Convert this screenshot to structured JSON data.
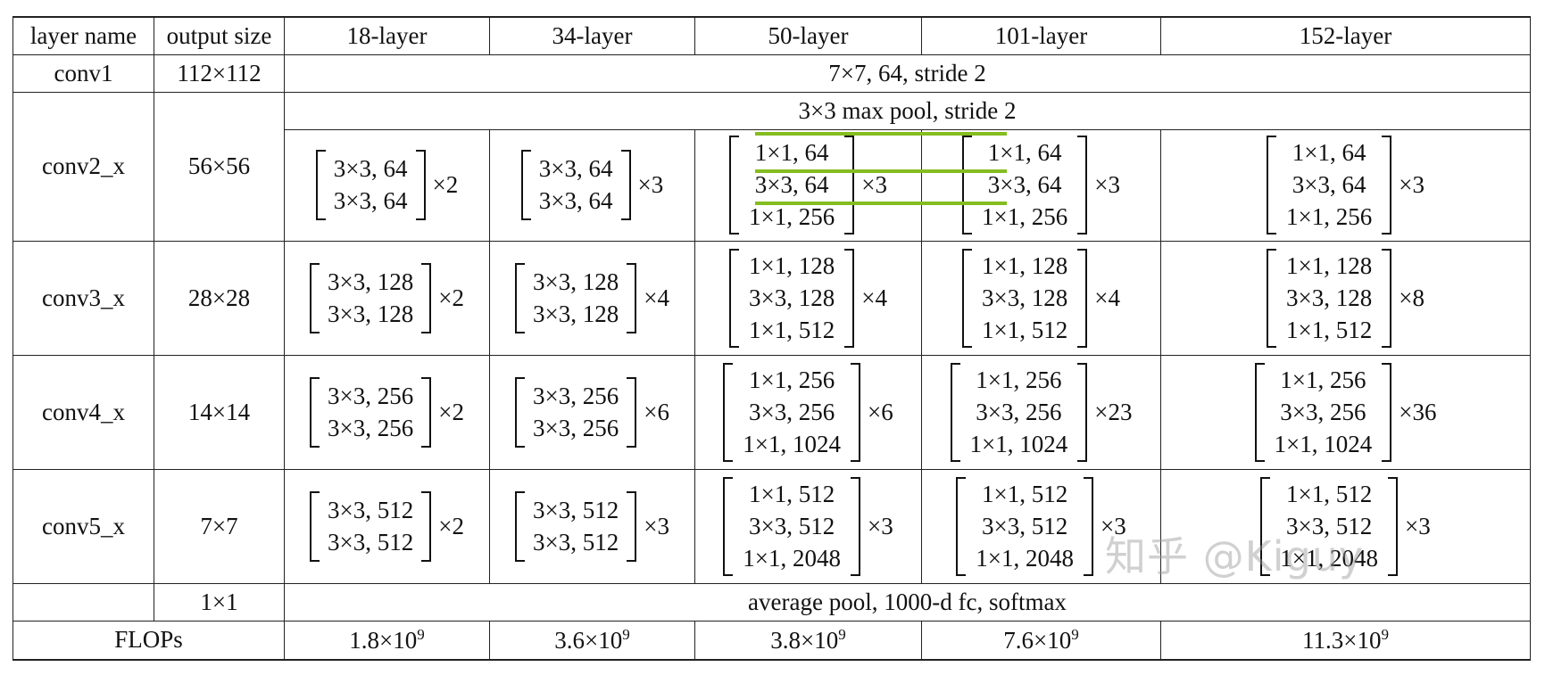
{
  "header": [
    "layer name",
    "output size",
    "18-layer",
    "34-layer",
    "50-layer",
    "101-layer",
    "152-layer"
  ],
  "conv1": {
    "name": "conv1",
    "size": "112×112",
    "desc": "7×7, 64, stride 2"
  },
  "conv2": {
    "name": "conv2_x",
    "size": "56×56",
    "pool": "3×3 max pool, stride 2",
    "l18": {
      "rows": [
        "3×3, 64",
        "3×3, 64"
      ],
      "rep": "×2"
    },
    "l34": {
      "rows": [
        "3×3, 64",
        "3×3, 64"
      ],
      "rep": "×3"
    },
    "l50": {
      "rows": [
        "1×1, 64",
        "3×3, 64",
        "1×1, 256"
      ],
      "rep": "×3"
    },
    "l101": {
      "rows": [
        "1×1, 64",
        "3×3, 64",
        "1×1, 256"
      ],
      "rep": "×3"
    },
    "l152": {
      "rows": [
        "1×1, 64",
        "3×3, 64",
        "1×1, 256"
      ],
      "rep": "×3"
    }
  },
  "conv3": {
    "name": "conv3_x",
    "size": "28×28",
    "l18": {
      "rows": [
        "3×3, 128",
        "3×3, 128"
      ],
      "rep": "×2"
    },
    "l34": {
      "rows": [
        "3×3, 128",
        "3×3, 128"
      ],
      "rep": "×4"
    },
    "l50": {
      "rows": [
        "1×1, 128",
        "3×3, 128",
        "1×1, 512"
      ],
      "rep": "×4"
    },
    "l101": {
      "rows": [
        "1×1, 128",
        "3×3, 128",
        "1×1, 512"
      ],
      "rep": "×4"
    },
    "l152": {
      "rows": [
        "1×1, 128",
        "3×3, 128",
        "1×1, 512"
      ],
      "rep": "×8"
    }
  },
  "conv4": {
    "name": "conv4_x",
    "size": "14×14",
    "l18": {
      "rows": [
        "3×3, 256",
        "3×3, 256"
      ],
      "rep": "×2"
    },
    "l34": {
      "rows": [
        "3×3, 256",
        "3×3, 256"
      ],
      "rep": "×6"
    },
    "l50": {
      "rows": [
        "1×1, 256",
        "3×3, 256",
        "1×1, 1024"
      ],
      "rep": "×6"
    },
    "l101": {
      "rows": [
        "1×1, 256",
        "3×3, 256",
        "1×1, 1024"
      ],
      "rep": "×23"
    },
    "l152": {
      "rows": [
        "1×1, 256",
        "3×3, 256",
        "1×1, 1024"
      ],
      "rep": "×36"
    }
  },
  "conv5": {
    "name": "conv5_x",
    "size": "7×7",
    "l18": {
      "rows": [
        "3×3, 512",
        "3×3, 512"
      ],
      "rep": "×2"
    },
    "l34": {
      "rows": [
        "3×3, 512",
        "3×3, 512"
      ],
      "rep": "×3"
    },
    "l50": {
      "rows": [
        "1×1, 512",
        "3×3, 512",
        "1×1, 2048"
      ],
      "rep": "×3"
    },
    "l101": {
      "rows": [
        "1×1, 512",
        "3×3, 512",
        "1×1, 2048"
      ],
      "rep": "×3"
    },
    "l152": {
      "rows": [
        "1×1, 512",
        "3×3, 512",
        "1×1, 2048"
      ],
      "rep": "×3"
    }
  },
  "final": {
    "size": "1×1",
    "desc": "average pool, 1000-d fc, softmax"
  },
  "flops": {
    "label": "FLOPs",
    "l18": {
      "base": "1.8×10",
      "exp": "9"
    },
    "l34": {
      "base": "3.6×10",
      "exp": "9"
    },
    "l50": {
      "base": "3.8×10",
      "exp": "9"
    },
    "l101": {
      "base": "7.6×10",
      "exp": "9"
    },
    "l152": {
      "base": "11.3×10",
      "exp": "9"
    }
  },
  "highlight_color": "#84bd1f",
  "watermark": "知乎 @Kiguy"
}
